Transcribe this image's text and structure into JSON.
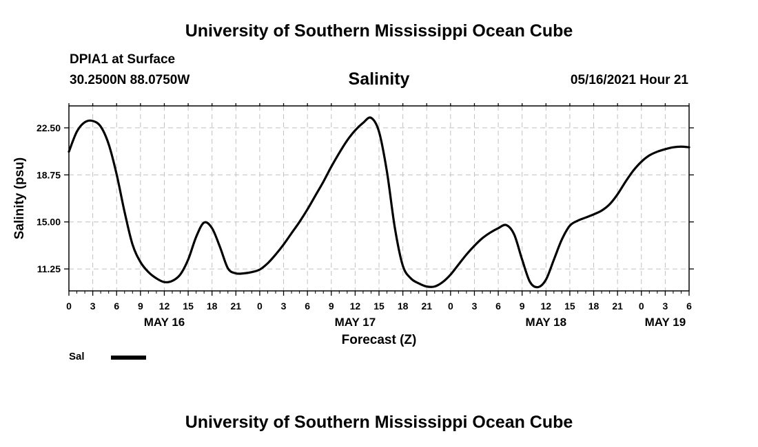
{
  "header": {
    "title_top": "University of Southern Mississippi Ocean Cube",
    "station": "DPIA1 at Surface",
    "coords": "30.2500N  88.0750W",
    "variable": "Salinity",
    "datetime": "05/16/2021 Hour 21"
  },
  "footer": {
    "title_bottom": "University of Southern Mississippi Ocean Cube"
  },
  "legend": {
    "label": "Sal"
  },
  "colors": {
    "line": "#000000",
    "grid": "#c0c0c0",
    "frame": "#000000"
  },
  "chart_data": {
    "type": "line",
    "title": "Salinity",
    "xlabel": "Forecast (Z)",
    "ylabel": "Salinity (psu)",
    "xlim": [
      0,
      78
    ],
    "ylim": [
      9.5,
      24.25
    ],
    "grid": true,
    "legend": "bottom-left",
    "y_ticks": [
      11.25,
      15.0,
      18.75,
      22.5
    ],
    "y_tick_labels": [
      "11.25",
      "15.00",
      "18.75",
      "22.50"
    ],
    "x_tick_labels": [
      "0",
      "3",
      "6",
      "9",
      "12",
      "15",
      "18",
      "21",
      "0",
      "3",
      "6",
      "9",
      "12",
      "15",
      "18",
      "21",
      "0",
      "3",
      "6",
      "9",
      "12",
      "15",
      "18",
      "21",
      "0",
      "3",
      "6"
    ],
    "date_labels": [
      {
        "hour": 12,
        "label": "MAY 16"
      },
      {
        "hour": 36,
        "label": "MAY 17"
      },
      {
        "hour": 60,
        "label": "MAY 18"
      },
      {
        "hour": 75,
        "label": "MAY 19"
      }
    ],
    "series": [
      {
        "name": "Sal",
        "x": [
          0,
          1,
          2,
          3,
          4,
          5,
          6,
          7,
          8,
          9,
          10,
          11,
          12,
          13,
          14,
          15,
          16,
          17,
          18,
          19,
          20,
          21,
          22,
          23,
          24,
          25,
          26,
          27,
          28,
          29,
          30,
          31,
          32,
          33,
          34,
          35,
          36,
          37,
          38,
          39,
          40,
          41,
          42,
          43,
          44,
          45,
          46,
          47,
          48,
          49,
          50,
          51,
          52,
          53,
          54,
          55,
          56,
          57,
          58,
          59,
          60,
          61,
          62,
          63,
          64,
          65,
          66,
          67,
          68,
          69,
          70,
          71,
          72,
          73,
          74,
          75,
          76,
          77,
          78
        ],
        "values": [
          20.6,
          22.2,
          22.95,
          23.05,
          22.6,
          21.2,
          18.8,
          15.8,
          13.2,
          11.8,
          11.0,
          10.5,
          10.2,
          10.3,
          10.8,
          12.0,
          13.8,
          14.95,
          14.5,
          13.0,
          11.3,
          10.9,
          10.9,
          11.0,
          11.2,
          11.7,
          12.4,
          13.2,
          14.1,
          15.0,
          16.0,
          17.1,
          18.2,
          19.4,
          20.5,
          21.5,
          22.3,
          22.9,
          23.3,
          22.2,
          19.0,
          14.5,
          11.5,
          10.5,
          10.1,
          9.85,
          9.85,
          10.2,
          10.8,
          11.6,
          12.4,
          13.1,
          13.7,
          14.15,
          14.5,
          14.75,
          14.0,
          12.0,
          10.2,
          9.8,
          10.4,
          12.0,
          13.6,
          14.7,
          15.1,
          15.35,
          15.6,
          15.9,
          16.4,
          17.2,
          18.2,
          19.1,
          19.8,
          20.3,
          20.6,
          20.8,
          20.95,
          21.0,
          20.95
        ]
      }
    ]
  }
}
